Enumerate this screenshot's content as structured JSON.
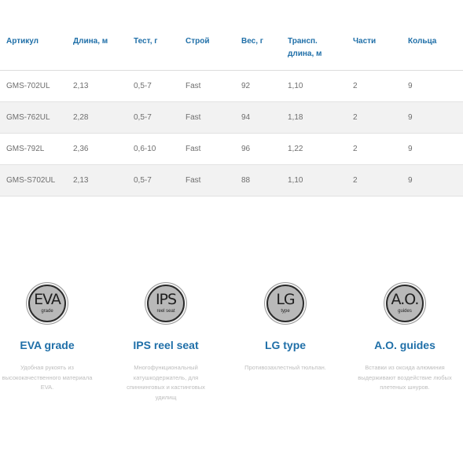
{
  "table": {
    "headers": [
      "Артикул",
      "Длина, м",
      "Тест, г",
      "Строй",
      "Вес, г",
      "Трансп.",
      "Части",
      "Кольца"
    ],
    "header_transport_line2": "длина, м",
    "rows": [
      [
        "GMS-702UL",
        "2,13",
        "0,5-7",
        "Fast",
        "92",
        "1,10",
        "2",
        "9"
      ],
      [
        "GMS-762UL",
        "2,28",
        "0,5-7",
        "Fast",
        "94",
        "1,18",
        "2",
        "9"
      ],
      [
        "GMS-792L",
        "2,36",
        "0,6-10",
        "Fast",
        "96",
        "1,22",
        "2",
        "9"
      ],
      [
        "GMS-S702UL",
        "2,13",
        "0,5-7",
        "Fast",
        "88",
        "1,10",
        "2",
        "9"
      ]
    ]
  },
  "features": [
    {
      "badge_main": "EVA",
      "badge_sub": "grade",
      "icon": "eva-grade-badge-icon",
      "title": "EVA grade",
      "description": "Удобная рукоять из высококачественного материала EVA."
    },
    {
      "badge_main": "IPS",
      "badge_sub": "reel seat",
      "icon": "ips-reel-seat-badge-icon",
      "title": "IPS reel seat",
      "description": "Многофункциональный катушкодержатель, для спиннинговых и кастинговых удилищ"
    },
    {
      "badge_main": "LG",
      "badge_sub": "type",
      "icon": "lg-type-badge-icon",
      "title": "LG type",
      "description": "Противозахлестный тюльпан."
    },
    {
      "badge_main": "A.O.",
      "badge_sub": "guides",
      "icon": "ao-guides-badge-icon",
      "title": "A.O. guides",
      "description": "Вставки из оксида алюминия выдерживают воздействие любых плетеных шнуров."
    }
  ],
  "colors": {
    "accent_blue": "#1f6fa8",
    "row_stripe": "#f2f2f2",
    "cell_text": "#6e6e6e",
    "muted_text": "#bdbdbd",
    "badge_fill": "#b9b9b9"
  }
}
